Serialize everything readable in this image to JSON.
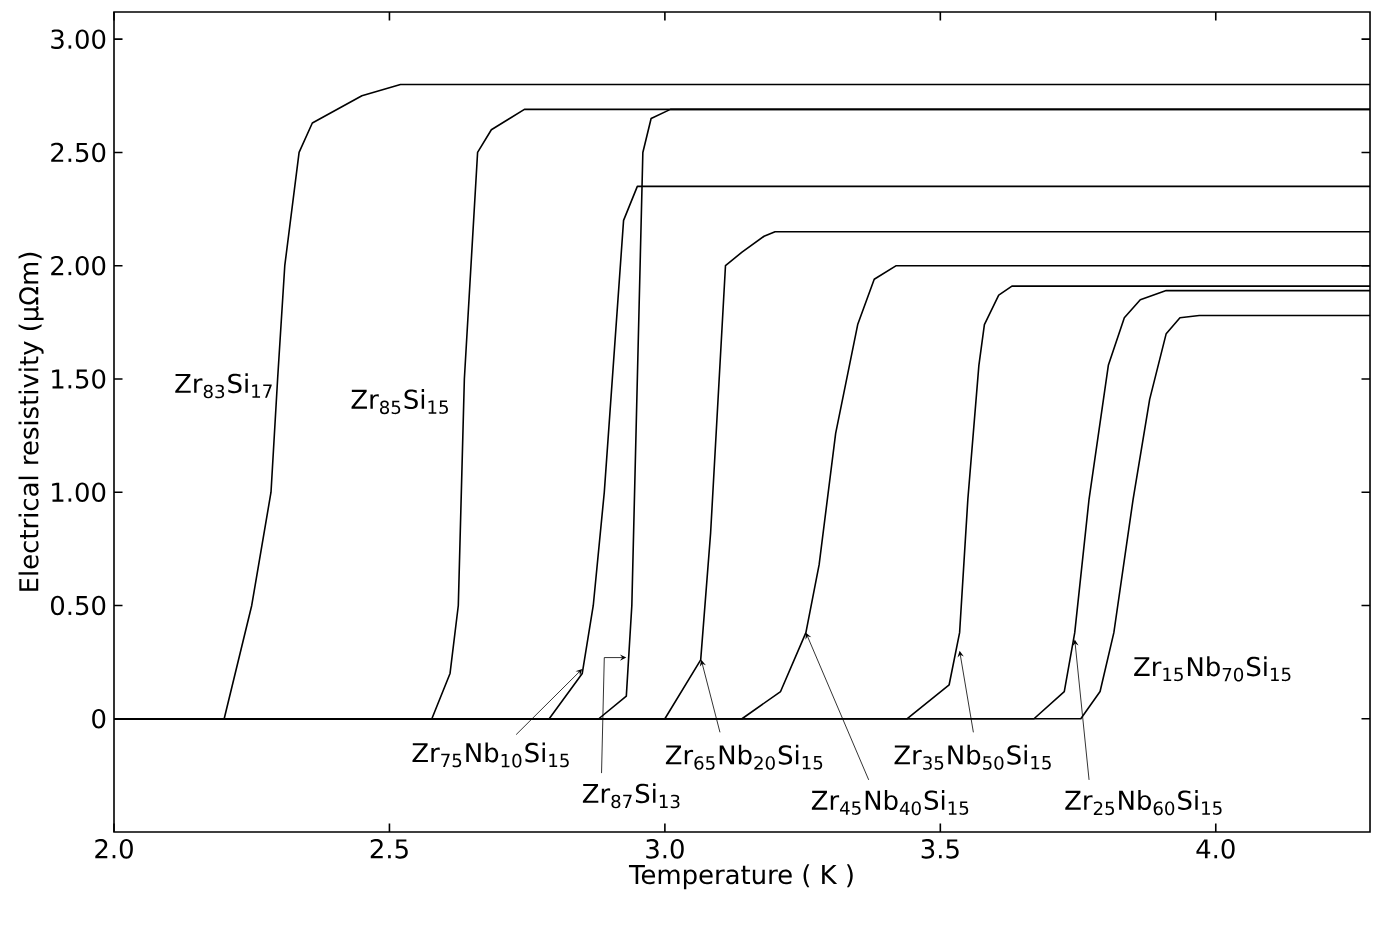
{
  "chart_data": {
    "type": "line",
    "xlabel": "Temperature  ( K )",
    "ylabel": "Electrical  resistivity  (μΩm)",
    "xlim": [
      2.0,
      4.28
    ],
    "ylim": [
      -0.5,
      3.12
    ],
    "xticks": [
      {
        "value": 2,
        "label": "2.0"
      },
      {
        "value": 2.5,
        "label": "2.5"
      },
      {
        "value": 3,
        "label": "3.0"
      },
      {
        "value": 3.5,
        "label": "3.5"
      },
      {
        "value": 4,
        "label": "4.0"
      }
    ],
    "yticks": [
      {
        "value": 0,
        "label": "0"
      },
      {
        "value": 0.5,
        "label": "0.50"
      },
      {
        "value": 1,
        "label": "1.00"
      },
      {
        "value": 1.5,
        "label": "1.50"
      },
      {
        "value": 2,
        "label": "2.00"
      },
      {
        "value": 2.5,
        "label": "2.50"
      },
      {
        "value": 3,
        "label": "3.00"
      }
    ],
    "series": [
      {
        "name": "Zr$_{83}$Si$_{17}$",
        "color": "#000000",
        "x": [
          2.0,
          2.2,
          2.25,
          2.285,
          2.297,
          2.31,
          2.336,
          2.36,
          2.45,
          2.52,
          4.28
        ],
        "values": [
          0,
          0,
          0.5,
          1.0,
          1.5,
          2.0,
          2.5,
          2.63,
          2.75,
          2.8,
          2.8
        ]
      },
      {
        "name": "Zr$_{85}$Si$_{15}$",
        "color": "#000000",
        "x": [
          2.0,
          2.577,
          2.61,
          2.625,
          2.636,
          2.66,
          2.685,
          2.745,
          4.28
        ],
        "values": [
          0,
          0,
          0.2,
          0.5,
          1.5,
          2.5,
          2.6,
          2.69,
          2.69
        ]
      },
      {
        "name": "Zr$_{75}$Nb$_{10}$Si$_{15}$",
        "color": "#000000",
        "x": [
          2.0,
          2.79,
          2.85,
          2.87,
          2.89,
          2.925,
          2.95,
          4.28
        ],
        "values": [
          0,
          0,
          0.2,
          0.5,
          1.0,
          2.2,
          2.35,
          2.35
        ]
      },
      {
        "name": "Zr$_{87}$Si$_{13}$",
        "color": "#000000",
        "x": [
          2.0,
          2.88,
          2.93,
          2.94,
          2.96,
          2.975,
          3.01,
          4.28
        ],
        "values": [
          0,
          0,
          0.1,
          0.5,
          2.5,
          2.65,
          2.69,
          2.69
        ]
      },
      {
        "name": "Zr$_{65}$Nb$_{20}$Si$_{15}$",
        "color": "#000000",
        "x": [
          2.0,
          3.0,
          3.065,
          3.083,
          3.11,
          3.14,
          3.18,
          3.2,
          4.28
        ],
        "values": [
          0,
          0,
          0.26,
          0.82,
          2.0,
          2.06,
          2.13,
          2.15,
          2.15
        ]
      },
      {
        "name": "Zr$_{45}$Nb$_{40}$Si$_{15}$",
        "color": "#000000",
        "x": [
          2.0,
          3.14,
          3.21,
          3.256,
          3.28,
          3.31,
          3.35,
          3.38,
          3.42,
          4.28
        ],
        "values": [
          0,
          0,
          0.12,
          0.38,
          0.68,
          1.26,
          1.74,
          1.94,
          2.0,
          2.0
        ]
      },
      {
        "name": "Zr$_{35}$Nb$_{50}$Si$_{15}$",
        "color": "#000000",
        "x": [
          2.0,
          3.44,
          3.516,
          3.535,
          3.55,
          3.57,
          3.58,
          3.606,
          3.63,
          4.28
        ],
        "values": [
          0,
          0,
          0.15,
          0.38,
          0.97,
          1.56,
          1.74,
          1.87,
          1.91,
          1.91
        ]
      },
      {
        "name": "Zr$_{25}$Nb$_{60}$Si$_{15}$",
        "color": "#000000",
        "x": [
          2.0,
          3.67,
          3.725,
          3.744,
          3.77,
          3.805,
          3.834,
          3.863,
          3.91,
          4.28
        ],
        "values": [
          0,
          0,
          0.12,
          0.38,
          0.97,
          1.56,
          1.77,
          1.85,
          1.89,
          1.89
        ]
      },
      {
        "name": "Zr$_{15}$Nb$_{70}$Si$_{15}$",
        "color": "#000000",
        "x": [
          2.0,
          3.755,
          3.79,
          3.815,
          3.85,
          3.88,
          3.91,
          3.935,
          3.97,
          4.28
        ],
        "values": [
          0,
          0,
          0.12,
          0.38,
          0.97,
          1.41,
          1.7,
          1.77,
          1.78,
          1.78
        ]
      }
    ]
  }
}
